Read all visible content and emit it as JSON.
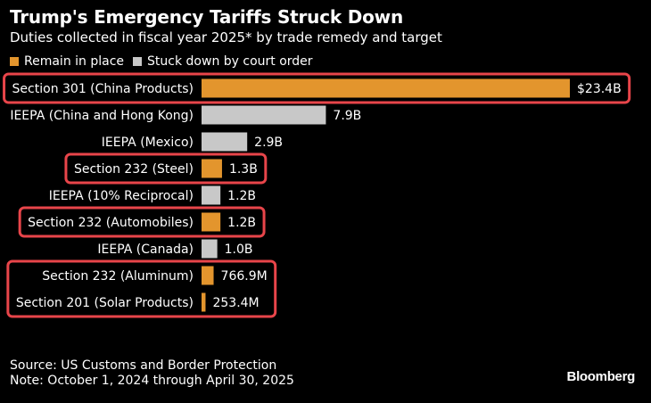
{
  "title": "Trump's Emergency Tariffs Struck Down",
  "subtitle": "Duties collected in fiscal year 2025* by trade remedy and target",
  "legend": [
    {
      "label": "Remain in place",
      "color": "#E3952D"
    },
    {
      "label": "Stuck down by court order",
      "color": "#C8C8C8"
    }
  ],
  "colors": {
    "remain": "#E3952D",
    "struck": "#C8C8C8",
    "highlight": "#E8454A"
  },
  "chart_data": {
    "type": "bar",
    "orientation": "horizontal",
    "title": "Trump's Emergency Tariffs Struck Down",
    "subtitle": "Duties collected in fiscal year 2025* by trade remedy and target",
    "categories": [
      "Section 301 (China Products)",
      "IEEPA (China and Hong Kong)",
      "IEEPA (Mexico)",
      "Section 232 (Steel)",
      "IEEPA (10% Reciprocal)",
      "Section 232 (Automobiles)",
      "IEEPA (Canada)",
      "Section 232 (Aluminum)",
      "Section 201 (Solar Products)"
    ],
    "values": [
      23.4,
      7.9,
      2.9,
      1.3,
      1.2,
      1.2,
      1.0,
      0.7669,
      0.2534
    ],
    "unit": "billion USD",
    "value_labels": [
      "$23.4B",
      "7.9B",
      "2.9B",
      "1.3B",
      "1.2B",
      "1.2B",
      "1.0B",
      "766.9M",
      "253.4M"
    ],
    "status": [
      "Remain in place",
      "Stuck down by court order",
      "Stuck down by court order",
      "Remain in place",
      "Stuck down by court order",
      "Remain in place",
      "Stuck down by court order",
      "Remain in place",
      "Remain in place"
    ],
    "highlight_groups": [
      [
        0
      ],
      [
        3
      ],
      [
        5
      ],
      [
        7,
        8
      ]
    ],
    "xlim": [
      0,
      23.4
    ],
    "grid": false,
    "legend_position": "top-left"
  },
  "footer": {
    "source": "Source: US Customs and Border Protection",
    "note": "Note: October 1, 2024 through April 30, 2025",
    "brand": "Bloomberg"
  }
}
